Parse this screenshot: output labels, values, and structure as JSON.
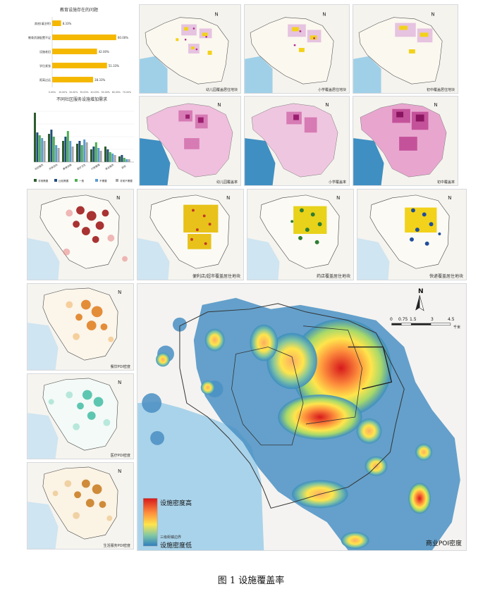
{
  "figure_caption": "图 1 设施覆盖率",
  "chart_bar": {
    "title": "教育设施存在的问题",
    "categories": [
      "其他(请注明)",
      "教育资源配置不足",
      "设施老旧",
      "学位紧张",
      "距离过远"
    ],
    "values_text": [
      "8.33%",
      "60.00%",
      "42.00%",
      "51.33%",
      "38.33%"
    ],
    "values": [
      8.33,
      60.0,
      42.0,
      51.33,
      38.33
    ],
    "ticks": [
      "0.00%",
      "10.00%",
      "20.00%",
      "30.00%",
      "40.00%",
      "50.00%",
      "60.00%",
      "70.00%"
    ]
  },
  "chart_group": {
    "title": "不同社区服务设施增加需求",
    "categories": [
      "社区服务",
      "文体活动",
      "教育设施",
      "医疗卫生",
      "行政管理",
      "商业服务",
      "其他"
    ],
    "legend": [
      "非常需要",
      "比较需要",
      "一般",
      "不需要",
      "非常不需要"
    ],
    "colors": [
      "#2e5c2e",
      "#1f4e79",
      "#4caf50",
      "#5b9bd5",
      "#a5a5a5"
    ]
  },
  "top_maps": {
    "row1_captions": [
      "幼儿园覆盖居住地块",
      "小学覆盖居住地块",
      "初中覆盖居住地块"
    ],
    "row2_captions": [
      "幼儿园覆盖率",
      "小学覆盖率",
      "初中覆盖率"
    ]
  },
  "mid_maps": {
    "captions": [
      "",
      "便利店/超市覆盖居住地块",
      "药店覆盖居住地块",
      "快递覆盖居住地块"
    ]
  },
  "left_maps": {
    "captions": [
      "餐饮POI密度",
      "医疗POI密度",
      "生活服务POI密度"
    ]
  },
  "main_map": {
    "legend_high": "设施密度高",
    "legend_low": "设施密度低",
    "legend_note": "三级街镇边界",
    "north": "N",
    "scale_ticks": [
      "0",
      "0.75",
      "1.5",
      "3",
      "4.5"
    ],
    "scale_unit": "千米",
    "title": "商业POI密度"
  }
}
